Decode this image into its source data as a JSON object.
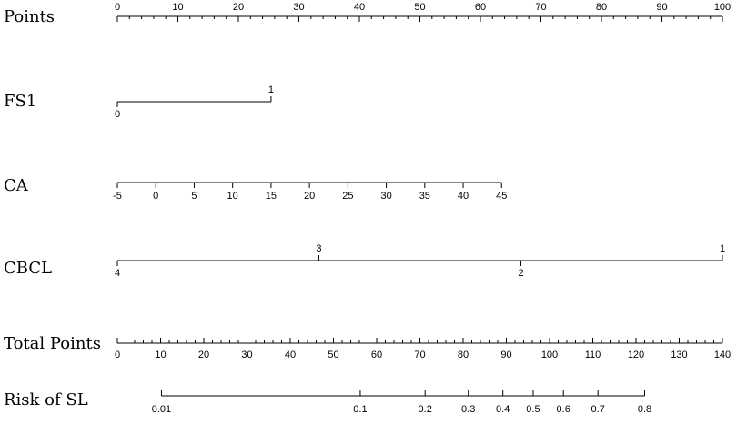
{
  "chart_data": {
    "type": "nomogram",
    "rows": [
      {
        "key": "points",
        "label": "Points",
        "kind": "linear",
        "range": [
          0,
          100
        ],
        "major_ticks": [
          0,
          10,
          20,
          30,
          40,
          50,
          60,
          70,
          80,
          90,
          100
        ],
        "minor_step": 2,
        "tick_labels": [
          "0",
          "10",
          "20",
          "30",
          "40",
          "50",
          "60",
          "70",
          "80",
          "90",
          "100"
        ],
        "label_side": "above",
        "tick_dir": "down"
      },
      {
        "key": "fs1",
        "label": "FS1",
        "kind": "categorical",
        "levels": [
          {
            "label": "0",
            "points": 0,
            "side": "below"
          },
          {
            "label": "1",
            "points": 25.4,
            "side": "above"
          }
        ]
      },
      {
        "key": "ca",
        "label": "CA",
        "kind": "linear",
        "values": [
          -5,
          0,
          5,
          10,
          15,
          20,
          25,
          30,
          35,
          40,
          45
        ],
        "tick_labels": [
          "-5",
          "0",
          "5",
          "10",
          "15",
          "20",
          "25",
          "30",
          "35",
          "40",
          "45"
        ],
        "points_range": [
          0,
          63.5
        ],
        "label_side": "below",
        "tick_dir": "down"
      },
      {
        "key": "cbcl",
        "label": "CBCL",
        "kind": "categorical",
        "levels": [
          {
            "label": "4",
            "points": 0,
            "side": "below"
          },
          {
            "label": "3",
            "points": 33.3,
            "side": "above"
          },
          {
            "label": "2",
            "points": 66.7,
            "side": "below"
          },
          {
            "label": "1",
            "points": 100,
            "side": "above"
          }
        ]
      },
      {
        "key": "total_points",
        "label": "Total Points",
        "kind": "linear",
        "range": [
          0,
          140
        ],
        "major_ticks": [
          0,
          10,
          20,
          30,
          40,
          50,
          60,
          70,
          80,
          90,
          100,
          110,
          120,
          130,
          140
        ],
        "minor_step": 2,
        "tick_labels": [
          "0",
          "10",
          "20",
          "30",
          "40",
          "50",
          "60",
          "70",
          "80",
          "90",
          "100",
          "110",
          "120",
          "130",
          "140"
        ],
        "label_side": "below",
        "tick_dir": "up"
      },
      {
        "key": "risk",
        "label": "Risk of  SL",
        "kind": "risk",
        "values": [
          0.01,
          0.1,
          0.2,
          0.3,
          0.4,
          0.5,
          0.6,
          0.7,
          0.8
        ],
        "tick_labels": [
          "0.01",
          "0.1",
          "0.2",
          "0.3",
          "0.4",
          "0.5",
          "0.6",
          "0.7",
          "0.8"
        ],
        "total_points": [
          10.2,
          56.2,
          71.2,
          81.2,
          89.2,
          96.2,
          103.2,
          111.2,
          122.0
        ],
        "label_side": "below",
        "tick_dir": "up"
      }
    ]
  }
}
